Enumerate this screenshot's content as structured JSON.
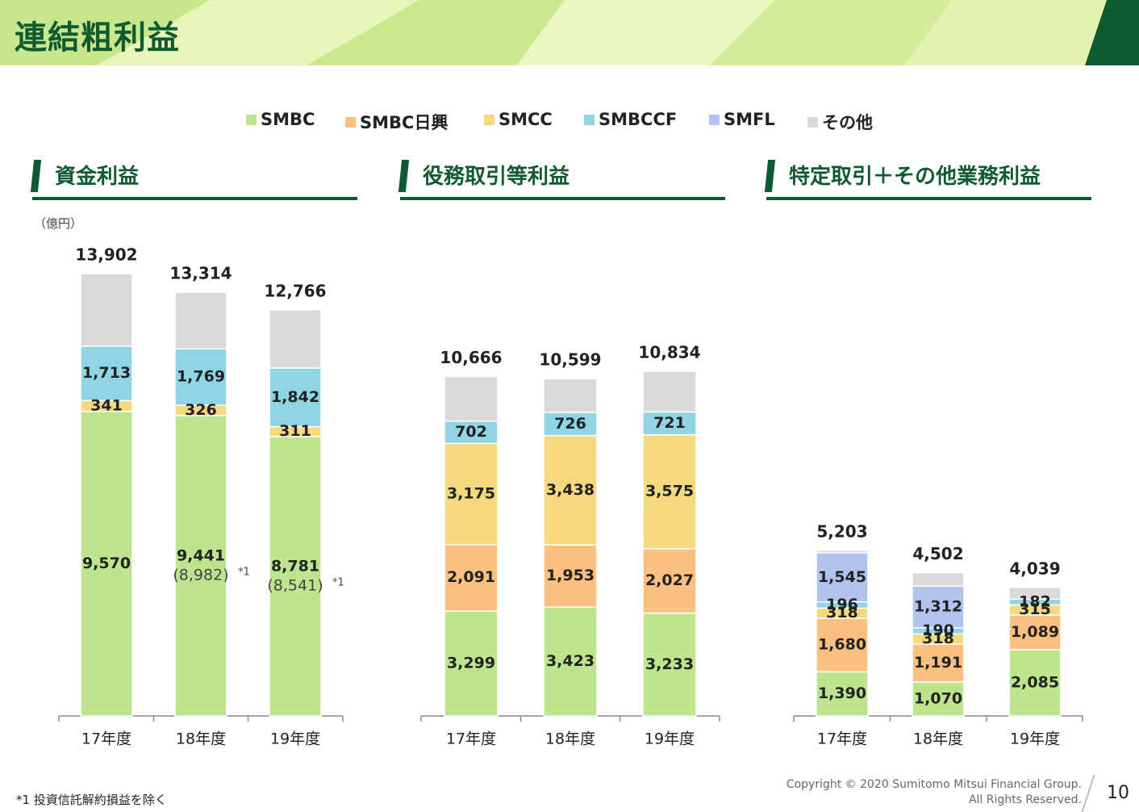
{
  "page": {
    "title": "連結粗利益",
    "unit": "（億円）",
    "footnote": "*1 投資信託解約損益を除く",
    "copyright_line1": "Copyright © 2020 Sumitomo Mitsui Financial Group.",
    "copyright_line2": "All Rights Reserved.",
    "page_number": "10"
  },
  "legend": [
    {
      "name": "SMBC",
      "color": "#bde58e"
    },
    {
      "name": "SMBC日興",
      "color": "#fbbf7f"
    },
    {
      "name": "SMCC",
      "color": "#f6d97c"
    },
    {
      "name": "SMBCCF",
      "color": "#8fd5e6"
    },
    {
      "name": "SMFL",
      "color": "#b3c3ef"
    },
    {
      "name": "その他",
      "color": "#d9d9d9"
    }
  ],
  "colors": {
    "brand_green": "#0f5a31",
    "SMBC": "#bde58e",
    "SMBC日興": "#fbbf7f",
    "SMCC": "#f6d97c",
    "SMBCCF": "#8fd5e6",
    "SMFL": "#b3c3ef",
    "その他": "#d9d9d9"
  },
  "sections": [
    {
      "title": "資金利益"
    },
    {
      "title": "役務取引等利益"
    },
    {
      "title": "特定取引＋その他業務利益"
    }
  ],
  "chart_data": [
    {
      "type": "bar",
      "stacked": true,
      "title": "資金利益",
      "categories": [
        "17年度",
        "18年度",
        "19年度"
      ],
      "totals": [
        "13,902",
        "13,314",
        "12,766"
      ],
      "total_values": [
        13902,
        13314,
        12766
      ],
      "series": [
        {
          "name": "SMBC",
          "values": [
            9570,
            9441,
            8781
          ],
          "labels": [
            "9,570",
            "9,441",
            "8,781"
          ],
          "sublabels": [
            "",
            "(8,982)",
            "(8,541)"
          ],
          "notes": [
            "",
            "*1",
            "*1"
          ]
        },
        {
          "name": "SMCC",
          "values": [
            341,
            326,
            311
          ],
          "labels": [
            "341",
            "326",
            "311"
          ]
        },
        {
          "name": "SMBCCF",
          "values": [
            1713,
            1769,
            1842
          ],
          "labels": [
            "1,713",
            "1,769",
            "1,842"
          ]
        },
        {
          "name": "その他",
          "values": [
            2278,
            1778,
            1832
          ],
          "labels": [
            "",
            "",
            ""
          ]
        }
      ]
    },
    {
      "type": "bar",
      "stacked": true,
      "title": "役務取引等利益",
      "categories": [
        "17年度",
        "18年度",
        "19年度"
      ],
      "totals": [
        "10,666",
        "10,599",
        "10,834"
      ],
      "total_values": [
        10666,
        10599,
        10834
      ],
      "series": [
        {
          "name": "SMBC",
          "values": [
            3299,
            3423,
            3233
          ],
          "labels": [
            "3,299",
            "3,423",
            "3,233"
          ]
        },
        {
          "name": "SMBC日興",
          "values": [
            2091,
            1953,
            2027
          ],
          "labels": [
            "2,091",
            "1,953",
            "2,027"
          ]
        },
        {
          "name": "SMCC",
          "values": [
            3175,
            3438,
            3575
          ],
          "labels": [
            "3,175",
            "3,438",
            "3,575"
          ]
        },
        {
          "name": "SMBCCF",
          "values": [
            702,
            726,
            721
          ],
          "labels": [
            "702",
            "726",
            "721"
          ]
        },
        {
          "name": "その他",
          "values": [
            1399,
            1059,
            1278
          ],
          "labels": [
            "",
            "",
            ""
          ]
        }
      ]
    },
    {
      "type": "bar",
      "stacked": true,
      "title": "特定取引＋その他業務利益",
      "categories": [
        "17年度",
        "18年度",
        "19年度"
      ],
      "totals": [
        "5,203",
        "4,502",
        "4,039"
      ],
      "total_values": [
        5203,
        4502,
        4039
      ],
      "series": [
        {
          "name": "SMBC",
          "values": [
            1390,
            1070,
            2085
          ],
          "labels": [
            "1,390",
            "1,070",
            "2,085"
          ]
        },
        {
          "name": "SMBC日興",
          "values": [
            1680,
            1191,
            1089
          ],
          "labels": [
            "1,680",
            "1,191",
            "1,089"
          ]
        },
        {
          "name": "SMCC",
          "values": [
            318,
            318,
            315
          ],
          "labels": [
            "318",
            "318",
            "315"
          ]
        },
        {
          "name": "SMBCCF",
          "values": [
            196,
            190,
            182
          ],
          "labels": [
            "196",
            "190",
            "182"
          ]
        },
        {
          "name": "SMFL",
          "values": [
            1545,
            1312,
            0
          ],
          "labels": [
            "1,545",
            "1,312",
            ""
          ]
        },
        {
          "name": "その他",
          "values": [
            74,
            421,
            368
          ],
          "labels": [
            "",
            "",
            ""
          ]
        }
      ]
    }
  ]
}
